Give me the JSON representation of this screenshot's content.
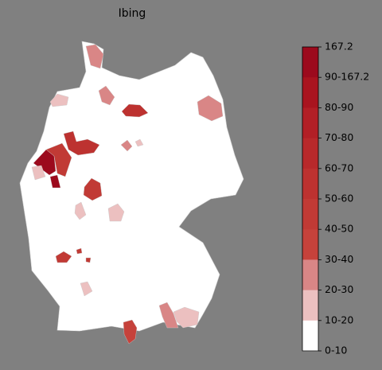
{
  "title": "Ibing",
  "legend": {
    "labels": [
      "167.2",
      "90-167.2",
      "80-90",
      "70-80",
      "60-70",
      "50-60",
      "40-50",
      "30-40",
      "20-30",
      "10-20",
      "0-10"
    ],
    "colors": [
      "#9c0a1d",
      "#a9141f",
      "#b21f26",
      "#b8292b",
      "#bd3230",
      "#c13a35",
      "#c6423b",
      "#d98686",
      "#ecc0c0",
      "#ffffff"
    ]
  }
}
